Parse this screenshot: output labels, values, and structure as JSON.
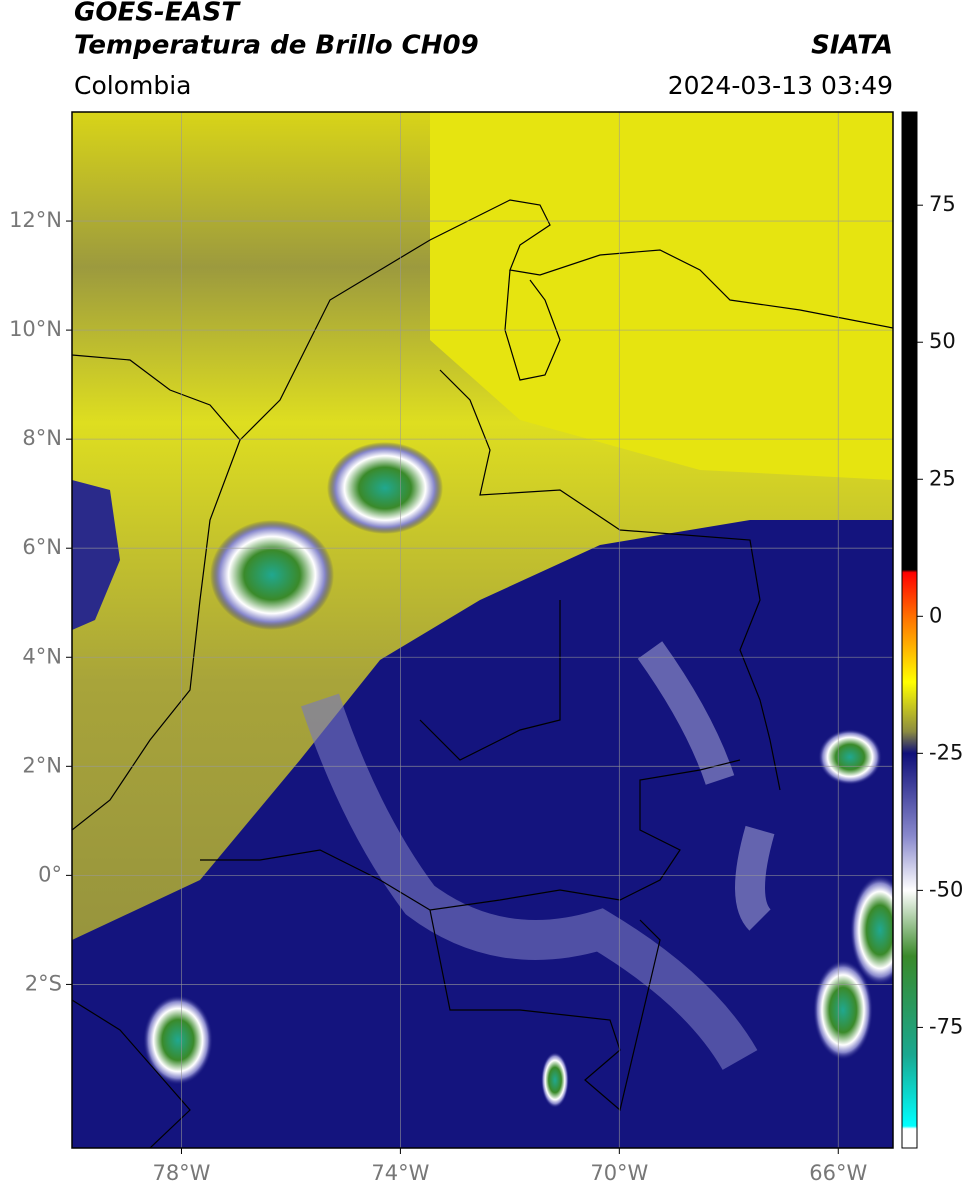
{
  "header": {
    "satellite": "GOES-EAST",
    "product": "Temperatura de Brillo CH09",
    "region": "Colombia",
    "source": "SIATA",
    "datetime": "2024-03-13 03:49"
  },
  "map": {
    "xlim": [
      -80,
      -65
    ],
    "ylim": [
      -5,
      14
    ],
    "xticks": [
      {
        "value": -78,
        "label": "78°W"
      },
      {
        "value": -74,
        "label": "74°W"
      },
      {
        "value": -70,
        "label": "70°W"
      },
      {
        "value": -66,
        "label": "66°W"
      }
    ],
    "yticks": [
      {
        "value": -2,
        "label": "2°S"
      },
      {
        "value": 0,
        "label": "0°"
      },
      {
        "value": 2,
        "label": "2°N"
      },
      {
        "value": 4,
        "label": "4°N"
      },
      {
        "value": 6,
        "label": "6°N"
      },
      {
        "value": 8,
        "label": "8°N"
      },
      {
        "value": 10,
        "label": "10°N"
      },
      {
        "value": 12,
        "label": "12°N"
      }
    ],
    "grid": true
  },
  "colorbar": {
    "lim": [
      -97,
      92
    ],
    "ticks": [
      -75,
      -50,
      -25,
      0,
      25,
      50,
      75
    ],
    "colormap": [
      {
        "value": 92,
        "color": "#000000"
      },
      {
        "value": 8.5,
        "color": "#000000"
      },
      {
        "value": 8,
        "color": "#ff0000"
      },
      {
        "value": 0,
        "color": "#ff7000"
      },
      {
        "value": -12,
        "color": "#ffff00"
      },
      {
        "value": -21,
        "color": "#8c8c40"
      },
      {
        "value": -25,
        "color": "#10107a"
      },
      {
        "value": -40,
        "color": "#8888cc"
      },
      {
        "value": -50,
        "color": "#ffffff"
      },
      {
        "value": -62,
        "color": "#3a8a2a"
      },
      {
        "value": -80,
        "color": "#1aa890"
      },
      {
        "value": -93,
        "color": "#00ffff"
      },
      {
        "value": -93.5,
        "color": "#ffffff"
      },
      {
        "value": -97,
        "color": "#ffffff"
      }
    ]
  }
}
